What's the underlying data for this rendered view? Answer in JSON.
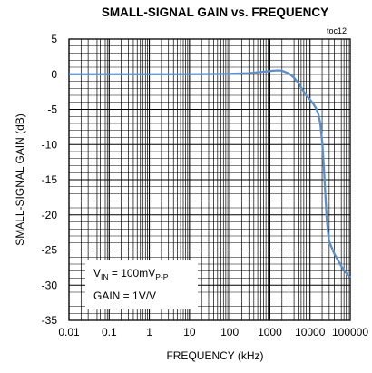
{
  "chart_data": {
    "type": "line",
    "title": "SMALL-SIGNAL GAIN vs. FREQUENCY",
    "figure_id": "toc12",
    "xlabel": "FREQUENCY (kHz)",
    "ylabel": "SMALL-SIGNAL GAIN (dB)",
    "x_scale": "log",
    "xlim": [
      0.01,
      100000
    ],
    "ylim": [
      -35,
      5
    ],
    "x_tick_labels": [
      "0.01",
      "0.1",
      "1",
      "10",
      "100",
      "1000",
      "10000",
      "100000"
    ],
    "y_tick_labels": [
      "5",
      "0",
      "-5",
      "-10",
      "-15",
      "-20",
      "-25",
      "-30",
      "-35"
    ],
    "grid": true,
    "annotation": {
      "line1_main": "V",
      "line1_sub": "IN",
      "line1_rest": " = 100mV",
      "line1_sub2": "P-P",
      "line2": "GAIN = 1V/V"
    },
    "series": [
      {
        "color": "#5b8fc9",
        "points": [
          [
            0.01,
            0.0
          ],
          [
            0.1,
            0.0
          ],
          [
            1,
            0.0
          ],
          [
            10,
            0.0
          ],
          [
            100,
            0.05
          ],
          [
            300,
            0.15
          ],
          [
            700,
            0.35
          ],
          [
            1200,
            0.5
          ],
          [
            1600,
            0.55
          ],
          [
            2000,
            0.5
          ],
          [
            3000,
            0.1
          ],
          [
            4000,
            -0.5
          ],
          [
            5000,
            -1.2
          ],
          [
            6500,
            -2.2
          ],
          [
            8000,
            -3.0
          ],
          [
            10000,
            -3.6
          ],
          [
            12000,
            -4.2
          ],
          [
            14000,
            -4.8
          ],
          [
            16000,
            -5.6
          ],
          [
            18000,
            -7.0
          ],
          [
            20000,
            -9.5
          ],
          [
            22000,
            -13.0
          ],
          [
            24000,
            -17.0
          ],
          [
            26000,
            -20.5
          ],
          [
            28000,
            -22.5
          ],
          [
            30000,
            -23.8
          ],
          [
            40000,
            -25.5
          ],
          [
            60000,
            -27.3
          ],
          [
            80000,
            -28.3
          ],
          [
            100000,
            -28.9
          ]
        ]
      }
    ]
  }
}
